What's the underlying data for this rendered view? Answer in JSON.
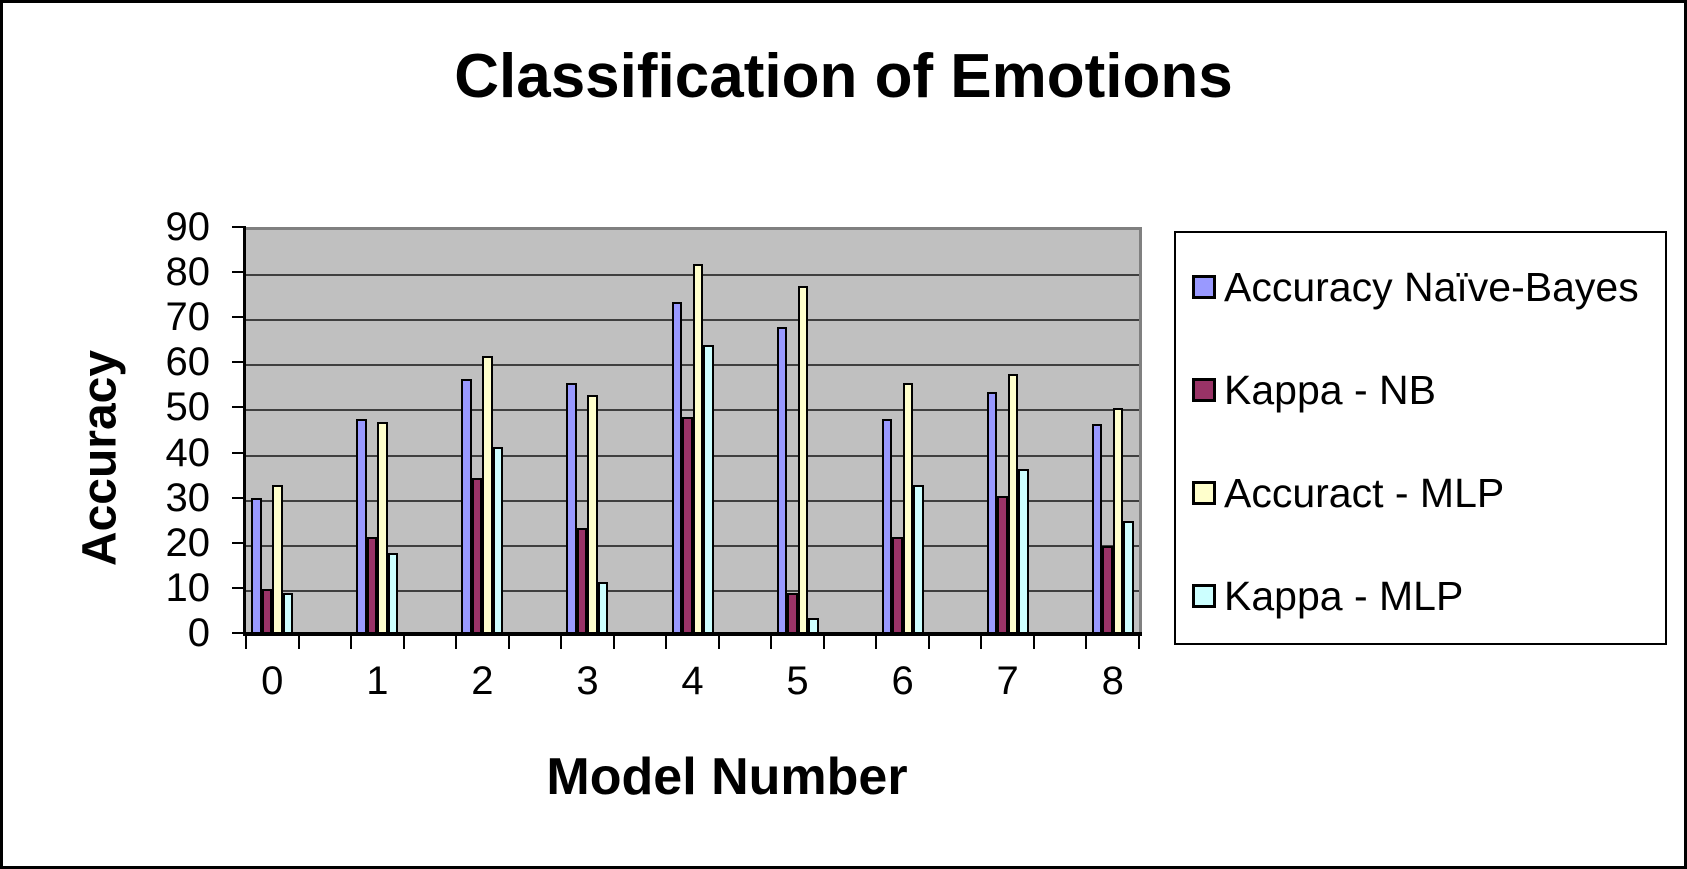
{
  "chart_data": {
    "type": "bar",
    "title": "Classification of Emotions",
    "xlabel": "Model Number",
    "ylabel": "Accuracy",
    "categories": [
      "0",
      "1",
      "2",
      "3",
      "4",
      "5",
      "6",
      "7",
      "8"
    ],
    "series": [
      {
        "name": "Accuracy Naïve-Bayes",
        "color": "#9999FF",
        "values": [
          30.5,
          48,
          57,
          56,
          74,
          68.5,
          48,
          54,
          47
        ]
      },
      {
        "name": "Kappa - NB",
        "color": "#993366",
        "values": [
          10.5,
          22,
          35,
          24,
          48.5,
          9.5,
          22,
          31,
          20
        ]
      },
      {
        "name": "Accuract - MLP",
        "color": "#FFFFCC",
        "values": [
          33.5,
          47.5,
          62,
          53.5,
          82.5,
          77.5,
          56,
          58,
          50.5
        ]
      },
      {
        "name": "Kappa - MLP",
        "color": "#CCFFFF",
        "values": [
          9.5,
          18.5,
          42,
          12,
          64.5,
          4,
          33.5,
          37,
          25.5
        ]
      }
    ],
    "ylim": [
      0,
      90
    ],
    "yticks": [
      0,
      10,
      20,
      30,
      40,
      50,
      60,
      70,
      80,
      90
    ],
    "grid": true,
    "legend_position": "right",
    "plot_background": "#C0C0C0",
    "bar_outline": "#000000"
  }
}
